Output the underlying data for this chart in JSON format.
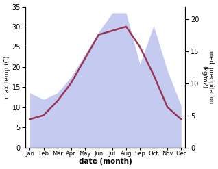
{
  "months": [
    "Jan",
    "Feb",
    "Mar",
    "Apr",
    "May",
    "Jun",
    "Jul",
    "Aug",
    "Sep",
    "Oct",
    "Nov",
    "Dec"
  ],
  "temp": [
    7.0,
    8.0,
    11.5,
    16.0,
    22.0,
    28.0,
    29.0,
    30.0,
    25.0,
    18.0,
    10.0,
    7.0
  ],
  "precip": [
    8.5,
    7.5,
    8.5,
    11.0,
    14.5,
    18.0,
    21.0,
    21.0,
    13.0,
    19.0,
    12.0,
    6.5
  ],
  "temp_color": "#993355",
  "precip_fill_color": "#c5caf0",
  "temp_ylim": [
    0,
    35
  ],
  "precip_ylim": [
    0,
    22
  ],
  "temp_yticks": [
    0,
    5,
    10,
    15,
    20,
    25,
    30,
    35
  ],
  "precip_yticks": [
    0,
    5,
    10,
    15,
    20
  ],
  "ylabel_left": "max temp (C)",
  "ylabel_right": "med. precipitation\n(kg/m2)",
  "xlabel": "date (month)",
  "background_color": "#ffffff"
}
